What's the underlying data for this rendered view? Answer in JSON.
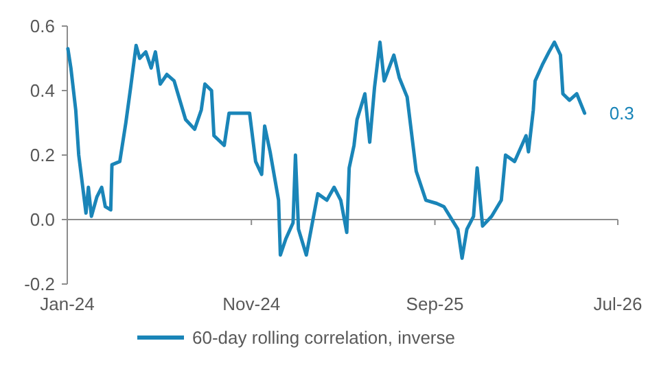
{
  "chart_data": {
    "type": "line",
    "x": [
      "2024-01-02",
      "2024-01-07",
      "2024-01-15",
      "2024-01-20",
      "2024-01-26",
      "2024-02-01",
      "2024-02-05",
      "2024-02-10",
      "2024-02-19",
      "2024-02-27",
      "2024-03-04",
      "2024-03-13",
      "2024-03-15",
      "2024-03-28",
      "2024-04-07",
      "2024-04-15",
      "2024-04-24",
      "2024-04-30",
      "2024-05-10",
      "2024-05-19",
      "2024-05-26",
      "2024-06-03",
      "2024-06-14",
      "2024-06-26",
      "2024-07-15",
      "2024-07-30",
      "2024-08-10",
      "2024-08-16",
      "2024-08-27",
      "2024-08-31",
      "2024-09-17",
      "2024-09-25",
      "2024-10-10",
      "2024-10-29",
      "2024-11-08",
      "2024-11-18",
      "2024-11-23",
      "2024-12-02",
      "2024-12-16",
      "2024-12-19",
      "2024-12-28",
      "2025-01-09",
      "2025-01-13",
      "2025-01-18",
      "2025-01-31",
      "2025-02-12",
      "2025-02-19",
      "2025-03-06",
      "2025-03-18",
      "2025-03-29",
      "2025-04-08",
      "2025-04-12",
      "2025-04-20",
      "2025-04-25",
      "2025-05-08",
      "2025-05-16",
      "2025-05-24",
      "2025-06-02",
      "2025-06-09",
      "2025-06-25",
      "2025-07-04",
      "2025-07-17",
      "2025-08-01",
      "2025-08-17",
      "2025-09-04",
      "2025-09-16",
      "2025-10-09",
      "2025-10-16",
      "2025-10-24",
      "2025-11-04",
      "2025-11-10",
      "2025-11-19",
      "2025-12-04",
      "2025-12-20",
      "2025-12-27",
      "2026-01-11",
      "2026-01-30",
      "2026-02-03",
      "2026-02-11",
      "2026-02-14",
      "2026-02-26",
      "2026-03-09",
      "2026-03-18",
      "2026-03-28",
      "2026-04-01",
      "2026-04-12",
      "2026-04-24",
      "2026-05-07"
    ],
    "series": [
      {
        "name": "60-day rolling correlation, inverse",
        "color": "#1a85b8",
        "values": [
          0.53,
          0.47,
          0.34,
          0.2,
          0.11,
          0.02,
          0.1,
          0.01,
          0.07,
          0.1,
          0.04,
          0.03,
          0.17,
          0.18,
          0.3,
          0.41,
          0.54,
          0.5,
          0.52,
          0.47,
          0.52,
          0.42,
          0.45,
          0.43,
          0.31,
          0.28,
          0.34,
          0.42,
          0.4,
          0.26,
          0.23,
          0.33,
          0.33,
          0.33,
          0.18,
          0.14,
          0.29,
          0.21,
          0.06,
          -0.11,
          -0.06,
          -0.01,
          0.2,
          -0.03,
          -0.11,
          0.01,
          0.08,
          0.06,
          0.1,
          0.06,
          -0.04,
          0.16,
          0.23,
          0.31,
          0.39,
          0.24,
          0.41,
          0.55,
          0.43,
          0.51,
          0.44,
          0.38,
          0.15,
          0.06,
          0.05,
          0.04,
          -0.03,
          -0.12,
          -0.03,
          0.01,
          0.16,
          -0.02,
          0.01,
          0.06,
          0.2,
          0.18,
          0.26,
          0.21,
          0.34,
          0.43,
          0.48,
          0.52,
          0.55,
          0.51,
          0.39,
          0.37,
          0.39,
          0.33
        ]
      }
    ],
    "xlim": [
      "2024-01-01",
      "2026-07-01"
    ],
    "xticks": [
      {
        "value": "2024-01-01",
        "label": "Jan-24"
      },
      {
        "value": "2024-11-01",
        "label": "Nov-24"
      },
      {
        "value": "2025-09-01",
        "label": "Sep-25"
      },
      {
        "value": "2026-07-01",
        "label": "Jul-26"
      }
    ],
    "ylim": [
      -0.2,
      0.6
    ],
    "yticks": [
      {
        "value": -0.2,
        "label": "-0.2"
      },
      {
        "value": 0,
        "label": "0.0"
      },
      {
        "value": 0.2,
        "label": "0.2"
      },
      {
        "value": 0.4,
        "label": "0.4"
      },
      {
        "value": 0.6,
        "label": "0.6"
      }
    ],
    "annotations": [
      {
        "text": "0.3",
        "x": "2026-05-07",
        "y": 0.33
      }
    ],
    "legend": "bottom",
    "marker": "none",
    "line_style": "solid"
  }
}
